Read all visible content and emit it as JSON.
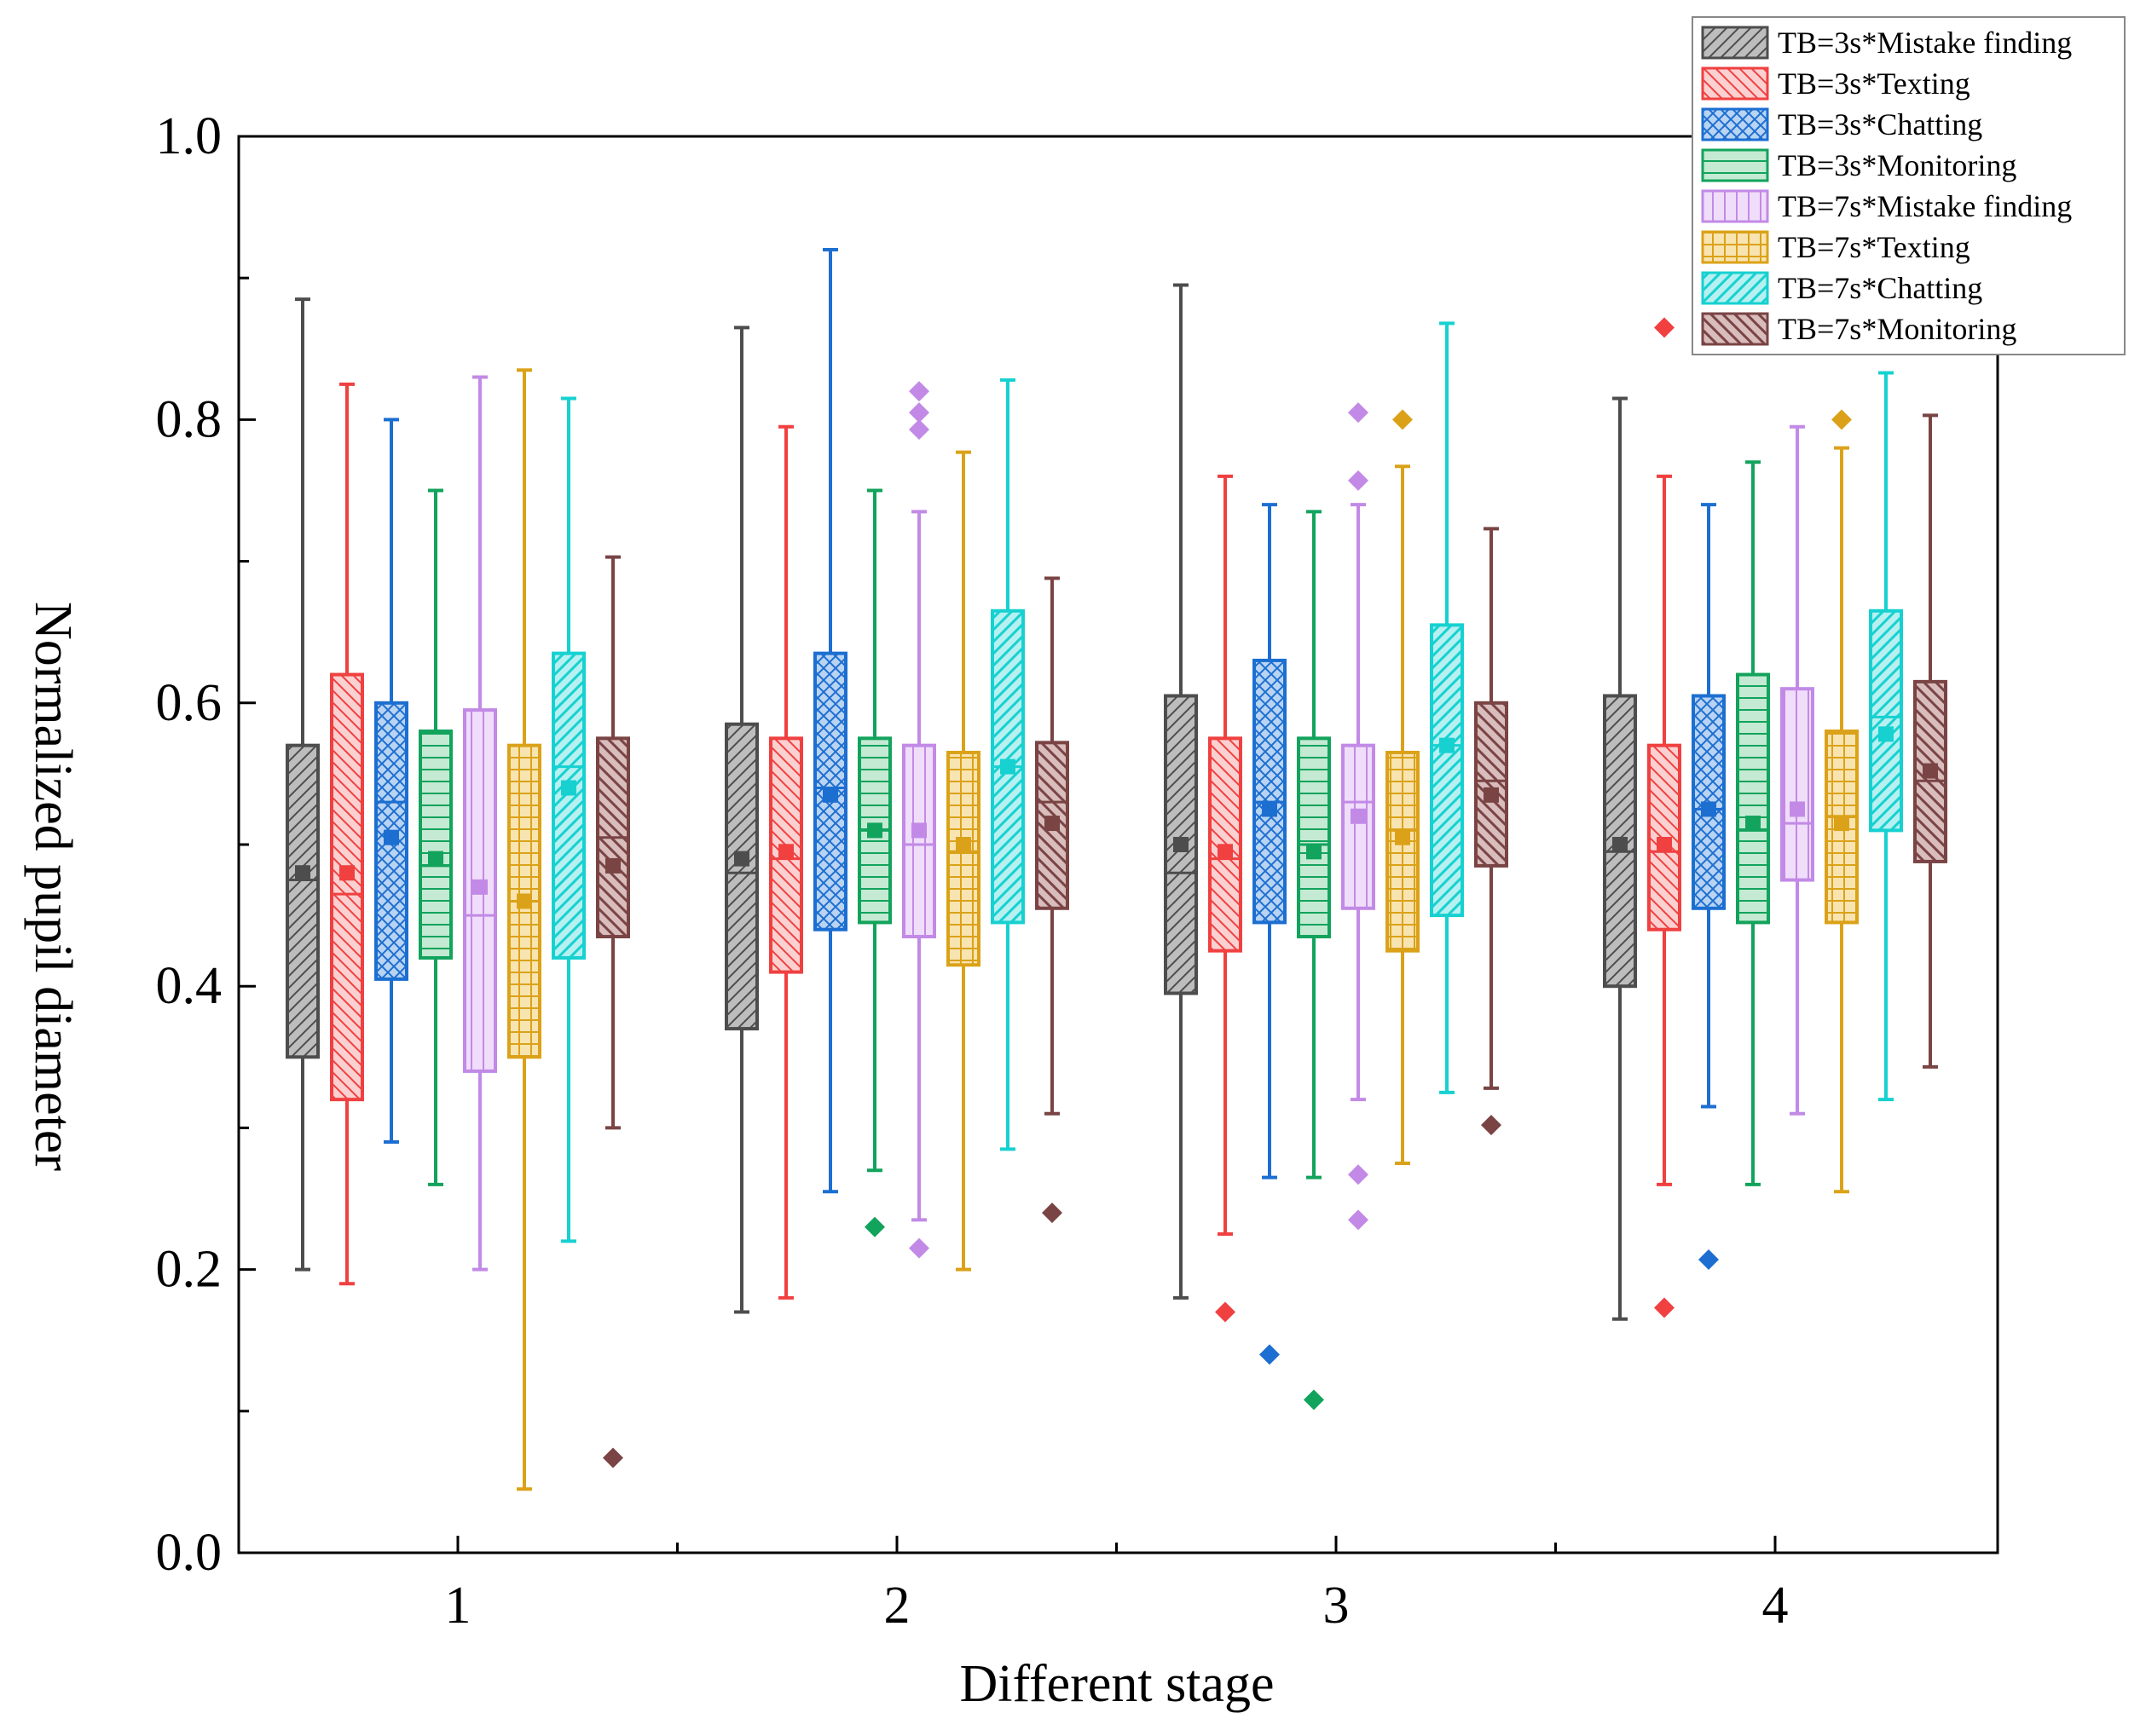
{
  "chart_data": {
    "type": "box",
    "title": "",
    "xlabel": "Different stage",
    "ylabel": "Normalized pupil diameter",
    "ylim": [
      0,
      1.0
    ],
    "y_ticks": [
      "0.0",
      "0.2",
      "0.4",
      "0.6",
      "0.8",
      "1.0"
    ],
    "categories": [
      "1",
      "2",
      "3",
      "4"
    ],
    "legend_position": "top-right",
    "series": [
      {
        "name": "TB=3s*Mistake finding",
        "color": "#4d4d4d",
        "fill": "#bdbdbd",
        "pattern": "diag-right",
        "boxes": [
          {
            "whisker_low": 0.2,
            "q1": 0.35,
            "median": 0.475,
            "q3": 0.57,
            "whisker_high": 0.885,
            "mean": 0.48,
            "outliers": []
          },
          {
            "whisker_low": 0.17,
            "q1": 0.37,
            "median": 0.48,
            "q3": 0.585,
            "whisker_high": 0.865,
            "mean": 0.49,
            "outliers": []
          },
          {
            "whisker_low": 0.18,
            "q1": 0.395,
            "median": 0.48,
            "q3": 0.605,
            "whisker_high": 0.895,
            "mean": 0.5,
            "outliers": []
          },
          {
            "whisker_low": 0.165,
            "q1": 0.4,
            "median": 0.495,
            "q3": 0.605,
            "whisker_high": 0.815,
            "mean": 0.5,
            "outliers": []
          }
        ]
      },
      {
        "name": "TB=3s*Texting",
        "color": "#f04040",
        "fill": "#fbd0d0",
        "pattern": "diag-left",
        "boxes": [
          {
            "whisker_low": 0.19,
            "q1": 0.32,
            "median": 0.465,
            "q3": 0.62,
            "whisker_high": 0.825,
            "mean": 0.48,
            "outliers": []
          },
          {
            "whisker_low": 0.18,
            "q1": 0.41,
            "median": 0.49,
            "q3": 0.575,
            "whisker_high": 0.795,
            "mean": 0.495,
            "outliers": []
          },
          {
            "whisker_low": 0.225,
            "q1": 0.425,
            "median": 0.49,
            "q3": 0.575,
            "whisker_high": 0.76,
            "mean": 0.495,
            "outliers": [
              0.17
            ]
          },
          {
            "whisker_low": 0.26,
            "q1": 0.44,
            "median": 0.495,
            "q3": 0.57,
            "whisker_high": 0.76,
            "mean": 0.5,
            "outliers": [
              0.865,
              0.173
            ]
          }
        ]
      },
      {
        "name": "TB=3s*Chatting",
        "color": "#1c6fd1",
        "fill": "#b9d3f2",
        "pattern": "cross",
        "boxes": [
          {
            "whisker_low": 0.29,
            "q1": 0.405,
            "median": 0.53,
            "q3": 0.6,
            "whisker_high": 0.8,
            "mean": 0.505,
            "outliers": []
          },
          {
            "whisker_low": 0.255,
            "q1": 0.44,
            "median": 0.54,
            "q3": 0.635,
            "whisker_high": 0.92,
            "mean": 0.535,
            "outliers": []
          },
          {
            "whisker_low": 0.265,
            "q1": 0.445,
            "median": 0.53,
            "q3": 0.63,
            "whisker_high": 0.74,
            "mean": 0.525,
            "outliers": [
              0.14
            ]
          },
          {
            "whisker_low": 0.315,
            "q1": 0.455,
            "median": 0.525,
            "q3": 0.605,
            "whisker_high": 0.74,
            "mean": 0.525,
            "outliers": [
              0.207
            ]
          }
        ]
      },
      {
        "name": "TB=3s*Monitoring",
        "color": "#12a35c",
        "fill": "#c4ead3",
        "pattern": "horizontal",
        "boxes": [
          {
            "whisker_low": 0.26,
            "q1": 0.42,
            "median": 0.485,
            "q3": 0.58,
            "whisker_high": 0.75,
            "mean": 0.49,
            "outliers": []
          },
          {
            "whisker_low": 0.27,
            "q1": 0.445,
            "median": 0.51,
            "q3": 0.575,
            "whisker_high": 0.75,
            "mean": 0.51,
            "outliers": [
              0.23
            ]
          },
          {
            "whisker_low": 0.265,
            "q1": 0.435,
            "median": 0.5,
            "q3": 0.575,
            "whisker_high": 0.735,
            "mean": 0.495,
            "outliers": [
              0.108
            ]
          },
          {
            "whisker_low": 0.26,
            "q1": 0.445,
            "median": 0.51,
            "q3": 0.62,
            "whisker_high": 0.77,
            "mean": 0.515,
            "outliers": []
          }
        ]
      },
      {
        "name": "TB=7s*Mistake finding",
        "color": "#c28ae6",
        "fill": "#f0ddfa",
        "pattern": "vertical",
        "boxes": [
          {
            "whisker_low": 0.2,
            "q1": 0.34,
            "median": 0.45,
            "q3": 0.595,
            "whisker_high": 0.83,
            "mean": 0.47,
            "outliers": []
          },
          {
            "whisker_low": 0.235,
            "q1": 0.435,
            "median": 0.5,
            "q3": 0.57,
            "whisker_high": 0.735,
            "mean": 0.51,
            "outliers": [
              0.82,
              0.805,
              0.793,
              0.215
            ]
          },
          {
            "whisker_low": 0.32,
            "q1": 0.455,
            "median": 0.53,
            "q3": 0.57,
            "whisker_high": 0.74,
            "mean": 0.52,
            "outliers": [
              0.805,
              0.757,
              0.267,
              0.235
            ]
          },
          {
            "whisker_low": 0.31,
            "q1": 0.475,
            "median": 0.515,
            "q3": 0.61,
            "whisker_high": 0.795,
            "mean": 0.525,
            "outliers": []
          }
        ]
      },
      {
        "name": "TB=7s*Texting",
        "color": "#dba219",
        "fill": "#f8e4b0",
        "pattern": "grid",
        "boxes": [
          {
            "whisker_low": 0.045,
            "q1": 0.35,
            "median": 0.46,
            "q3": 0.57,
            "whisker_high": 0.835,
            "mean": 0.46,
            "outliers": []
          },
          {
            "whisker_low": 0.2,
            "q1": 0.415,
            "median": 0.495,
            "q3": 0.565,
            "whisker_high": 0.777,
            "mean": 0.5,
            "outliers": []
          },
          {
            "whisker_low": 0.275,
            "q1": 0.425,
            "median": 0.51,
            "q3": 0.565,
            "whisker_high": 0.767,
            "mean": 0.505,
            "outliers": [
              0.8
            ]
          },
          {
            "whisker_low": 0.255,
            "q1": 0.445,
            "median": 0.52,
            "q3": 0.58,
            "whisker_high": 0.78,
            "mean": 0.515,
            "outliers": [
              0.8
            ]
          }
        ]
      },
      {
        "name": "TB=7s*Chatting",
        "color": "#17d1d1",
        "fill": "#b6f0f0",
        "pattern": "diag-right-thick",
        "boxes": [
          {
            "whisker_low": 0.22,
            "q1": 0.42,
            "median": 0.555,
            "q3": 0.635,
            "whisker_high": 0.815,
            "mean": 0.54,
            "outliers": []
          },
          {
            "whisker_low": 0.285,
            "q1": 0.445,
            "median": 0.555,
            "q3": 0.665,
            "whisker_high": 0.828,
            "mean": 0.555,
            "outliers": []
          },
          {
            "whisker_low": 0.325,
            "q1": 0.45,
            "median": 0.57,
            "q3": 0.655,
            "whisker_high": 0.868,
            "mean": 0.57,
            "outliers": []
          },
          {
            "whisker_low": 0.32,
            "q1": 0.51,
            "median": 0.59,
            "q3": 0.665,
            "whisker_high": 0.833,
            "mean": 0.578,
            "outliers": []
          }
        ]
      },
      {
        "name": "TB=7s*Monitoring",
        "color": "#7a4444",
        "fill": "#d9bcbc",
        "pattern": "diag-left-thick",
        "boxes": [
          {
            "whisker_low": 0.3,
            "q1": 0.435,
            "median": 0.505,
            "q3": 0.575,
            "whisker_high": 0.703,
            "mean": 0.485,
            "outliers": [
              0.067
            ]
          },
          {
            "whisker_low": 0.31,
            "q1": 0.455,
            "median": 0.53,
            "q3": 0.572,
            "whisker_high": 0.688,
            "mean": 0.515,
            "outliers": [
              0.24
            ]
          },
          {
            "whisker_low": 0.328,
            "q1": 0.485,
            "median": 0.545,
            "q3": 0.6,
            "whisker_high": 0.723,
            "mean": 0.535,
            "outliers": [
              0.302
            ]
          },
          {
            "whisker_low": 0.343,
            "q1": 0.488,
            "median": 0.545,
            "q3": 0.615,
            "whisker_high": 0.803,
            "mean": 0.552,
            "outliers": []
          }
        ]
      }
    ]
  }
}
